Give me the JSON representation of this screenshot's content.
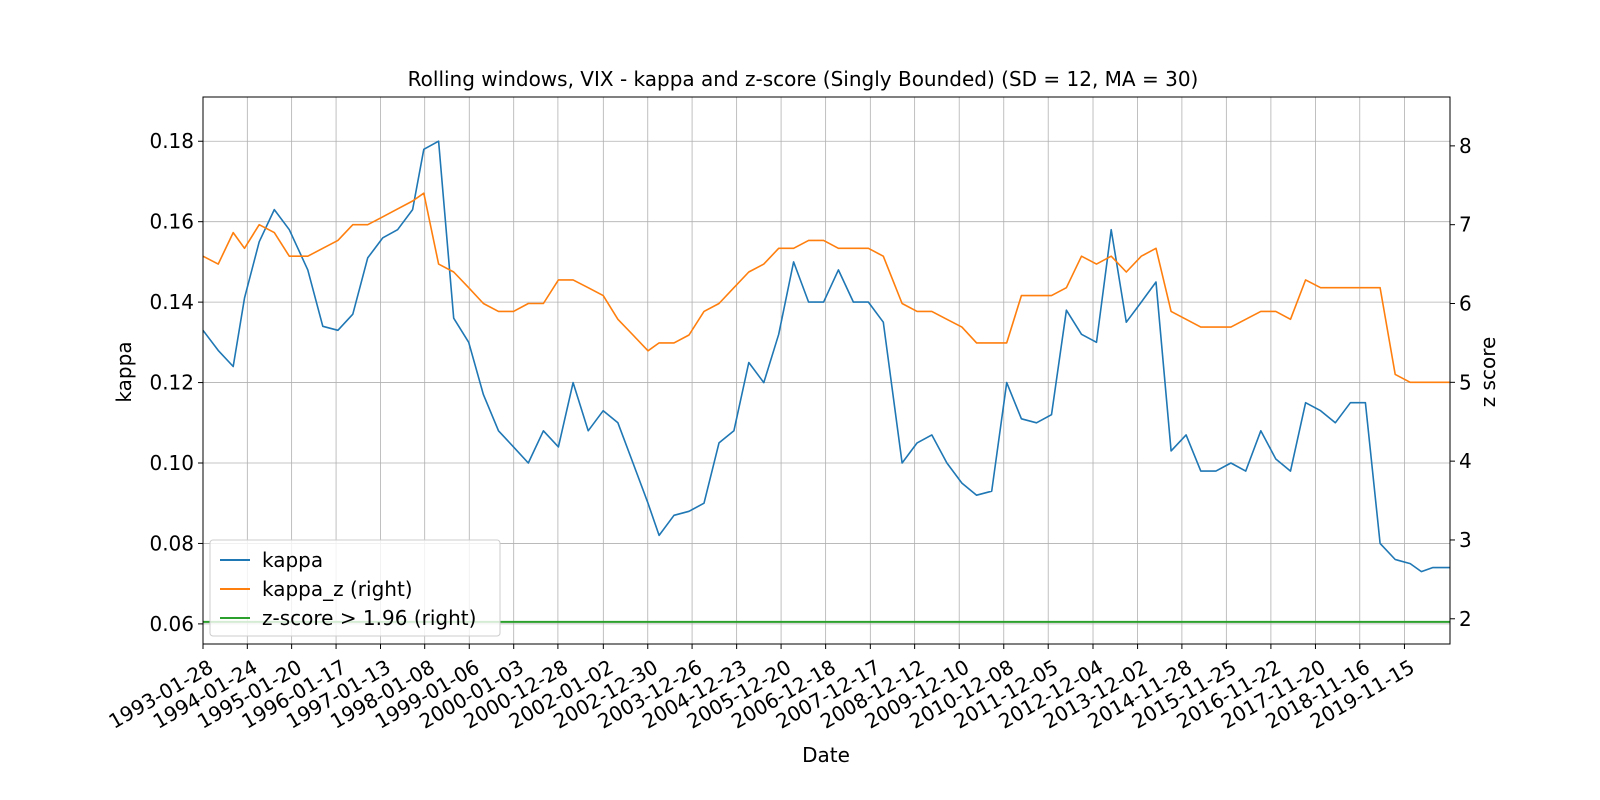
{
  "chart_data": {
    "type": "line",
    "title": "Rolling windows, VIX - kappa and z-score (Singly Bounded) (SD = 12, MA = 30)",
    "xlabel": "Date",
    "ylabel": "kappa",
    "y2label": "z score",
    "grid": true,
    "legend_position": "lower-left",
    "x_tick_labels": [
      "1993-01-28",
      "1994-01-24",
      "1995-01-20",
      "1996-01-17",
      "1997-01-13",
      "1998-01-08",
      "1999-01-06",
      "2000-01-03",
      "2000-12-28",
      "2002-01-02",
      "2002-12-30",
      "2003-12-26",
      "2004-12-23",
      "2005-12-20",
      "2006-12-18",
      "2007-12-17",
      "2008-12-12",
      "2009-12-10",
      "2010-12-08",
      "2011-12-05",
      "2012-12-04",
      "2013-12-02",
      "2014-11-28",
      "2015-11-25",
      "2016-11-22",
      "2017-11-20",
      "2018-11-16",
      "2019-11-15"
    ],
    "xlim": [
      "1993-01-28",
      "2020-11-20"
    ],
    "y_left": {
      "ylim": [
        0.055,
        0.191
      ],
      "ticks": [
        "0.06",
        "0.08",
        "0.10",
        "0.12",
        "0.14",
        "0.16",
        "0.18"
      ]
    },
    "y_right": {
      "ylim": [
        1.68,
        8.62
      ],
      "ticks": [
        "2",
        "3",
        "4",
        "5",
        "6",
        "7",
        "8"
      ]
    },
    "series": [
      {
        "name": "kappa",
        "axis": "left",
        "color": "#1f77b4",
        "x": [
          "1993-01-28",
          "1993-06-01",
          "1993-10-01",
          "1994-01-01",
          "1994-05-01",
          "1994-09-01",
          "1995-01-01",
          "1995-06-01",
          "1995-10-01",
          "1996-02-01",
          "1996-06-01",
          "1996-10-01",
          "1997-02-01",
          "1997-06-01",
          "1997-10-01",
          "1998-01-01",
          "1998-05-01",
          "1998-09-01",
          "1999-01-01",
          "1999-05-01",
          "1999-09-01",
          "2000-01-01",
          "2000-05-01",
          "2000-09-01",
          "2001-01-01",
          "2001-05-01",
          "2001-09-01",
          "2002-01-01",
          "2002-05-01",
          "2002-09-01",
          "2003-01-01",
          "2003-04-01",
          "2003-08-01",
          "2003-12-01",
          "2004-04-01",
          "2004-08-01",
          "2004-12-01",
          "2005-04-01",
          "2005-08-01",
          "2005-12-01",
          "2006-04-01",
          "2006-08-01",
          "2006-12-01",
          "2007-04-01",
          "2007-08-01",
          "2007-12-01",
          "2008-04-01",
          "2008-09-01",
          "2009-01-01",
          "2009-05-01",
          "2009-09-01",
          "2010-01-01",
          "2010-05-01",
          "2010-09-01",
          "2011-01-01",
          "2011-05-01",
          "2011-09-01",
          "2012-01-01",
          "2012-05-01",
          "2012-09-01",
          "2013-01-01",
          "2013-05-01",
          "2013-09-01",
          "2014-01-01",
          "2014-05-01",
          "2014-09-01",
          "2015-01-01",
          "2015-05-01",
          "2015-09-01",
          "2016-01-01",
          "2016-05-01",
          "2016-09-01",
          "2017-01-01",
          "2017-05-01",
          "2017-09-01",
          "2018-01-01",
          "2018-05-01",
          "2018-09-01",
          "2019-01-01",
          "2019-05-01",
          "2019-09-01",
          "2020-01-01",
          "2020-04-01",
          "2020-07-01",
          "2020-11-20"
        ],
        "values": [
          0.133,
          0.128,
          0.124,
          0.141,
          0.155,
          0.163,
          0.158,
          0.148,
          0.134,
          0.133,
          0.137,
          0.151,
          0.156,
          0.158,
          0.163,
          0.178,
          0.18,
          0.136,
          0.13,
          0.117,
          0.108,
          0.104,
          0.1,
          0.108,
          0.104,
          0.12,
          0.108,
          0.113,
          0.11,
          0.1,
          0.09,
          0.082,
          0.087,
          0.088,
          0.09,
          0.105,
          0.108,
          0.125,
          0.12,
          0.132,
          0.15,
          0.14,
          0.14,
          0.148,
          0.14,
          0.14,
          0.135,
          0.1,
          0.105,
          0.107,
          0.1,
          0.095,
          0.092,
          0.093,
          0.12,
          0.111,
          0.11,
          0.112,
          0.138,
          0.132,
          0.13,
          0.158,
          0.135,
          0.14,
          0.145,
          0.103,
          0.107,
          0.098,
          0.098,
          0.1,
          0.098,
          0.108,
          0.101,
          0.098,
          0.115,
          0.113,
          0.11,
          0.115,
          0.115,
          0.08,
          0.076,
          0.075,
          0.073,
          0.074,
          0.074
        ]
      },
      {
        "name": "kappa_z (right)",
        "axis": "right",
        "color": "#ff7f0e",
        "x": [
          "1993-01-28",
          "1993-06-01",
          "1993-10-01",
          "1994-01-01",
          "1994-05-01",
          "1994-09-01",
          "1995-01-01",
          "1995-06-01",
          "1995-10-01",
          "1996-02-01",
          "1996-06-01",
          "1996-10-01",
          "1997-02-01",
          "1997-06-01",
          "1997-10-01",
          "1998-01-01",
          "1998-05-01",
          "1998-09-01",
          "1999-01-01",
          "1999-05-01",
          "1999-09-01",
          "2000-01-01",
          "2000-05-01",
          "2000-09-01",
          "2001-01-01",
          "2001-05-01",
          "2001-09-01",
          "2002-01-01",
          "2002-05-01",
          "2002-09-01",
          "2003-01-01",
          "2003-04-01",
          "2003-08-01",
          "2003-12-01",
          "2004-04-01",
          "2004-08-01",
          "2004-12-01",
          "2005-04-01",
          "2005-08-01",
          "2005-12-01",
          "2006-04-01",
          "2006-08-01",
          "2006-12-01",
          "2007-04-01",
          "2007-08-01",
          "2007-12-01",
          "2008-04-01",
          "2008-09-01",
          "2009-01-01",
          "2009-05-01",
          "2009-09-01",
          "2010-01-01",
          "2010-05-01",
          "2010-09-01",
          "2011-01-01",
          "2011-05-01",
          "2011-09-01",
          "2012-01-01",
          "2012-05-01",
          "2012-09-01",
          "2013-01-01",
          "2013-05-01",
          "2013-09-01",
          "2014-01-01",
          "2014-05-01",
          "2014-09-01",
          "2015-01-01",
          "2015-05-01",
          "2015-09-01",
          "2016-01-01",
          "2016-05-01",
          "2016-09-01",
          "2017-01-01",
          "2017-05-01",
          "2017-09-01",
          "2018-01-01",
          "2018-05-01",
          "2018-09-01",
          "2019-01-01",
          "2019-05-01",
          "2019-09-01",
          "2020-01-01",
          "2020-04-01",
          "2020-07-01",
          "2020-11-20"
        ],
        "values": [
          6.6,
          6.5,
          6.9,
          6.7,
          7.0,
          6.9,
          6.6,
          6.6,
          6.7,
          6.8,
          7.0,
          7.0,
          7.1,
          7.2,
          7.3,
          7.4,
          6.5,
          6.4,
          6.2,
          6.0,
          5.9,
          5.9,
          6.0,
          6.0,
          6.3,
          6.3,
          6.2,
          6.1,
          5.8,
          5.6,
          5.4,
          5.5,
          5.5,
          5.6,
          5.9,
          6.0,
          6.2,
          6.4,
          6.5,
          6.7,
          6.7,
          6.8,
          6.8,
          6.7,
          6.7,
          6.7,
          6.6,
          6.0,
          5.9,
          5.9,
          5.8,
          5.7,
          5.5,
          5.5,
          5.5,
          6.1,
          6.1,
          6.1,
          6.2,
          6.6,
          6.5,
          6.6,
          6.4,
          6.6,
          6.7,
          5.9,
          5.8,
          5.7,
          5.7,
          5.7,
          5.8,
          5.9,
          5.9,
          5.8,
          6.3,
          6.2,
          6.2,
          6.2,
          6.2,
          6.2,
          5.1,
          5.0,
          5.0,
          5.0,
          5.0
        ]
      },
      {
        "name": "z-score > 1.96 (right)",
        "axis": "right",
        "color": "#2ca02c",
        "x": [
          "1993-01-28",
          "2020-11-20"
        ],
        "values": [
          1.96,
          1.96
        ]
      }
    ]
  }
}
